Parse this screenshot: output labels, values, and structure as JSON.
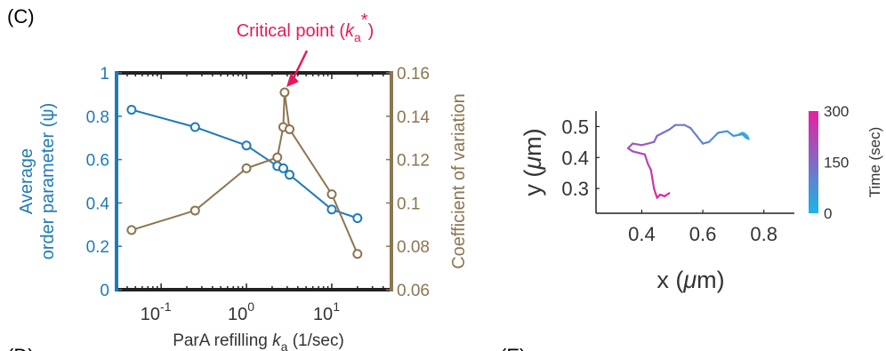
{
  "panel_labels": {
    "main": "(C)",
    "bottom_left": "(D)",
    "bottom_right": "(E)"
  },
  "colors": {
    "order": "#1f7ab8",
    "cv": "#8c7550",
    "annotation": "#e8195a",
    "time_start": "#18b6ea",
    "time_end": "#ea1fa0"
  },
  "chart_data": [
    {
      "type": "line",
      "x_scale": "log",
      "xlim": [
        0.03,
        50
      ],
      "x_ticks": [
        {
          "value": 0.1,
          "base": "10",
          "exp": "-1"
        },
        {
          "value": 1,
          "base": "10",
          "exp": "0"
        },
        {
          "value": 10,
          "base": "10",
          "exp": "1"
        }
      ],
      "xlabel": {
        "text": "ParA refilling ",
        "var": "k",
        "sub": "a",
        "unit": " (1/sec)"
      },
      "left_axis": {
        "ylabel": [
          "Average",
          "order parameter (ψ)"
        ],
        "ylim": [
          0,
          1
        ],
        "ticks": [
          "0",
          "0.2",
          "0.4",
          "0.6",
          "0.8",
          "1"
        ],
        "tick_values": [
          0,
          0.2,
          0.4,
          0.6,
          0.8,
          1
        ]
      },
      "right_axis": {
        "ylabel": "Coefficient of variation",
        "ylim": [
          0.06,
          0.16
        ],
        "ticks": [
          "0.06",
          "0.08",
          "0.1",
          "0.12",
          "0.14",
          "0.16"
        ],
        "tick_values": [
          0.06,
          0.08,
          0.1,
          0.12,
          0.14,
          0.16
        ]
      },
      "series": [
        {
          "axis": "left",
          "x": [
            0.045,
            0.25,
            1.0,
            2.3,
            2.7,
            3.2,
            10,
            20
          ],
          "y": [
            0.83,
            0.75,
            0.665,
            0.57,
            0.56,
            0.53,
            0.37,
            0.33
          ]
        },
        {
          "axis": "right",
          "x": [
            0.045,
            0.25,
            1.0,
            2.3,
            2.7,
            2.8,
            3.2,
            10,
            20
          ],
          "y": [
            0.0875,
            0.0965,
            0.116,
            0.121,
            0.135,
            0.151,
            0.134,
            0.104,
            0.0765
          ]
        }
      ],
      "annotation": {
        "text": "Critical point (",
        "var": "k",
        "sub": "a",
        "sup": "*",
        "close": ")",
        "x": 2.8,
        "y": 0.151
      }
    },
    {
      "type": "line",
      "xlim": [
        0.25,
        0.9
      ],
      "ylim": [
        0.22,
        0.55
      ],
      "x_ticks": [
        "0.4",
        "0.6",
        "0.8"
      ],
      "x_tick_values": [
        0.4,
        0.6,
        0.8
      ],
      "y_ticks": [
        "0.3",
        "0.4",
        "0.5"
      ],
      "y_tick_values": [
        0.3,
        0.4,
        0.5
      ],
      "xlabel": {
        "text": "x (",
        "mu": "μ",
        "unit": "m)"
      },
      "ylabel": {
        "text": "y (",
        "mu": "μ",
        "unit": "m)"
      },
      "colorbar": {
        "label": "Time (sec)",
        "ticks": [
          "0",
          "150",
          "300"
        ],
        "tick_values": [
          0,
          150,
          300
        ],
        "range": [
          0,
          300
        ]
      },
      "trajectory": {
        "x": [
          0.73,
          0.72,
          0.735,
          0.745,
          0.75,
          0.74,
          0.73,
          0.7,
          0.68,
          0.65,
          0.62,
          0.6,
          0.58,
          0.56,
          0.54,
          0.51,
          0.49,
          0.47,
          0.45,
          0.44,
          0.42,
          0.4,
          0.37,
          0.355,
          0.37,
          0.39,
          0.41,
          0.42,
          0.43,
          0.435,
          0.44,
          0.445,
          0.45,
          0.46,
          0.475,
          0.49
        ],
        "y": [
          0.48,
          0.475,
          0.478,
          0.47,
          0.46,
          0.465,
          0.475,
          0.47,
          0.485,
          0.48,
          0.45,
          0.445,
          0.47,
          0.495,
          0.505,
          0.505,
          0.49,
          0.48,
          0.47,
          0.45,
          0.445,
          0.44,
          0.445,
          0.43,
          0.42,
          0.415,
          0.41,
          0.38,
          0.36,
          0.33,
          0.3,
          0.285,
          0.27,
          0.28,
          0.275,
          0.285
        ]
      }
    }
  ]
}
